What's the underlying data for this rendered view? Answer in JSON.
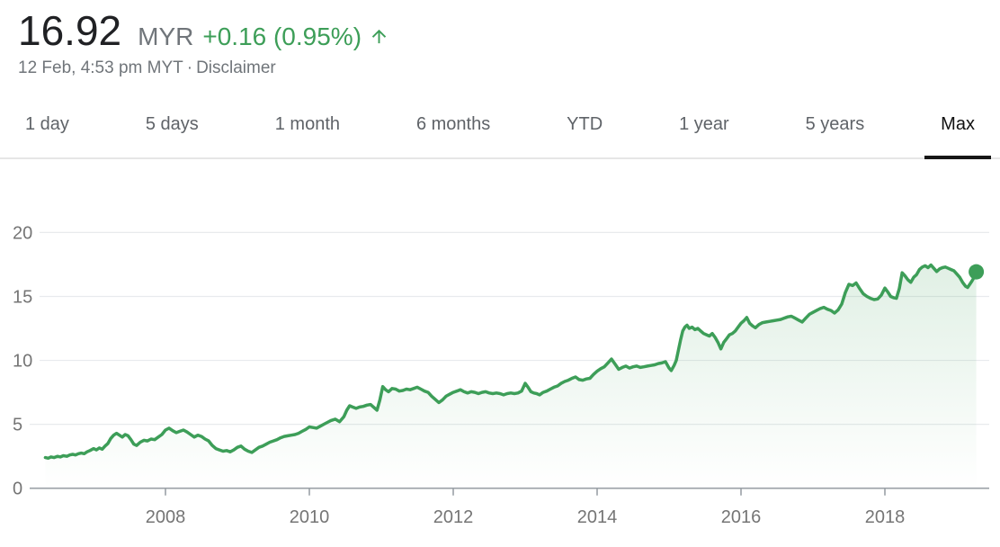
{
  "header": {
    "price": "16.92",
    "currency": "MYR",
    "change": "+0.16 (0.95%)",
    "change_direction": "up",
    "change_color": "#3d9e58",
    "price_color": "#202124",
    "muted_color": "#70757a",
    "date_line": "12 Feb, 4:53 pm MYT",
    "separator": "·",
    "disclaimer_label": "Disclaimer",
    "up_arrow_icon": "arrow-upward"
  },
  "tabs": {
    "items": [
      {
        "label": "1 day",
        "selected": false
      },
      {
        "label": "5 days",
        "selected": false
      },
      {
        "label": "1 month",
        "selected": false
      },
      {
        "label": "6 months",
        "selected": false
      },
      {
        "label": "YTD",
        "selected": false
      },
      {
        "label": "1 year",
        "selected": false
      },
      {
        "label": "5 years",
        "selected": false
      },
      {
        "label": "Max",
        "selected": true
      }
    ]
  },
  "chart_data": {
    "type": "area",
    "title": "",
    "xlabel": "",
    "ylabel": "",
    "x_ticks": [
      2008,
      2010,
      2012,
      2014,
      2016,
      2018
    ],
    "y_ticks": [
      0,
      5,
      10,
      15,
      20
    ],
    "xlim": [
      2006.325,
      2019.45
    ],
    "ylim": [
      0,
      21.8
    ],
    "grid": true,
    "legend": "none",
    "line_color": "#3d9e58",
    "fill_opacity_top": 0.18,
    "fill_opacity_bottom": 0.0,
    "grid_color": "#e8eaed",
    "axis_color": "#9aa0a6",
    "tick_label_color": "#757575",
    "end_dot": true,
    "end_dot_value": 16.92,
    "series": [
      {
        "name": "price",
        "points": [
          [
            2006.33,
            2.4
          ],
          [
            2006.37,
            2.35
          ],
          [
            2006.41,
            2.45
          ],
          [
            2006.45,
            2.4
          ],
          [
            2006.5,
            2.5
          ],
          [
            2006.54,
            2.45
          ],
          [
            2006.58,
            2.55
          ],
          [
            2006.63,
            2.5
          ],
          [
            2006.67,
            2.6
          ],
          [
            2006.71,
            2.65
          ],
          [
            2006.75,
            2.6
          ],
          [
            2006.79,
            2.7
          ],
          [
            2006.83,
            2.75
          ],
          [
            2006.87,
            2.7
          ],
          [
            2006.91,
            2.85
          ],
          [
            2006.95,
            2.95
          ],
          [
            2007,
            3.1
          ],
          [
            2007.04,
            3
          ],
          [
            2007.08,
            3.15
          ],
          [
            2007.12,
            3.05
          ],
          [
            2007.16,
            3.3
          ],
          [
            2007.2,
            3.5
          ],
          [
            2007.24,
            3.9
          ],
          [
            2007.28,
            4.15
          ],
          [
            2007.32,
            4.3
          ],
          [
            2007.36,
            4.15
          ],
          [
            2007.4,
            4
          ],
          [
            2007.44,
            4.2
          ],
          [
            2007.48,
            4.1
          ],
          [
            2007.52,
            3.8
          ],
          [
            2007.56,
            3.45
          ],
          [
            2007.6,
            3.35
          ],
          [
            2007.65,
            3.6
          ],
          [
            2007.7,
            3.75
          ],
          [
            2007.75,
            3.7
          ],
          [
            2007.8,
            3.85
          ],
          [
            2007.85,
            3.8
          ],
          [
            2007.9,
            4
          ],
          [
            2007.95,
            4.2
          ],
          [
            2008,
            4.55
          ],
          [
            2008.05,
            4.7
          ],
          [
            2008.1,
            4.5
          ],
          [
            2008.15,
            4.35
          ],
          [
            2008.2,
            4.45
          ],
          [
            2008.25,
            4.55
          ],
          [
            2008.3,
            4.4
          ],
          [
            2008.35,
            4.2
          ],
          [
            2008.4,
            4
          ],
          [
            2008.45,
            4.15
          ],
          [
            2008.5,
            4.05
          ],
          [
            2008.55,
            3.85
          ],
          [
            2008.6,
            3.7
          ],
          [
            2008.65,
            3.35
          ],
          [
            2008.7,
            3.1
          ],
          [
            2008.75,
            3
          ],
          [
            2008.8,
            2.9
          ],
          [
            2008.85,
            2.95
          ],
          [
            2008.9,
            2.85
          ],
          [
            2008.95,
            3
          ],
          [
            2009,
            3.2
          ],
          [
            2009.05,
            3.3
          ],
          [
            2009.1,
            3.05
          ],
          [
            2009.15,
            2.9
          ],
          [
            2009.2,
            2.8
          ],
          [
            2009.25,
            3
          ],
          [
            2009.3,
            3.2
          ],
          [
            2009.35,
            3.3
          ],
          [
            2009.4,
            3.45
          ],
          [
            2009.45,
            3.6
          ],
          [
            2009.5,
            3.7
          ],
          [
            2009.55,
            3.8
          ],
          [
            2009.6,
            3.95
          ],
          [
            2009.65,
            4.05
          ],
          [
            2009.7,
            4.1
          ],
          [
            2009.75,
            4.15
          ],
          [
            2009.8,
            4.2
          ],
          [
            2009.85,
            4.3
          ],
          [
            2009.9,
            4.45
          ],
          [
            2009.95,
            4.6
          ],
          [
            2010,
            4.8
          ],
          [
            2010.05,
            4.75
          ],
          [
            2010.1,
            4.7
          ],
          [
            2010.15,
            4.85
          ],
          [
            2010.2,
            5
          ],
          [
            2010.25,
            5.15
          ],
          [
            2010.3,
            5.3
          ],
          [
            2010.36,
            5.4
          ],
          [
            2010.42,
            5.2
          ],
          [
            2010.48,
            5.6
          ],
          [
            2010.52,
            6.1
          ],
          [
            2010.56,
            6.45
          ],
          [
            2010.6,
            6.35
          ],
          [
            2010.65,
            6.25
          ],
          [
            2010.7,
            6.35
          ],
          [
            2010.75,
            6.4
          ],
          [
            2010.8,
            6.5
          ],
          [
            2010.85,
            6.55
          ],
          [
            2010.9,
            6.3
          ],
          [
            2010.94,
            6.1
          ],
          [
            2010.98,
            6.9
          ],
          [
            2011.02,
            7.95
          ],
          [
            2011.06,
            7.7
          ],
          [
            2011.1,
            7.55
          ],
          [
            2011.15,
            7.8
          ],
          [
            2011.2,
            7.75
          ],
          [
            2011.25,
            7.6
          ],
          [
            2011.3,
            7.65
          ],
          [
            2011.35,
            7.75
          ],
          [
            2011.4,
            7.7
          ],
          [
            2011.45,
            7.8
          ],
          [
            2011.5,
            7.9
          ],
          [
            2011.55,
            7.75
          ],
          [
            2011.6,
            7.6
          ],
          [
            2011.65,
            7.5
          ],
          [
            2011.7,
            7.2
          ],
          [
            2011.75,
            6.95
          ],
          [
            2011.8,
            6.7
          ],
          [
            2011.85,
            6.9
          ],
          [
            2011.9,
            7.2
          ],
          [
            2011.95,
            7.35
          ],
          [
            2012,
            7.5
          ],
          [
            2012.05,
            7.6
          ],
          [
            2012.1,
            7.7
          ],
          [
            2012.15,
            7.55
          ],
          [
            2012.2,
            7.45
          ],
          [
            2012.25,
            7.55
          ],
          [
            2012.3,
            7.5
          ],
          [
            2012.35,
            7.4
          ],
          [
            2012.4,
            7.5
          ],
          [
            2012.45,
            7.55
          ],
          [
            2012.5,
            7.45
          ],
          [
            2012.55,
            7.4
          ],
          [
            2012.6,
            7.45
          ],
          [
            2012.65,
            7.4
          ],
          [
            2012.7,
            7.3
          ],
          [
            2012.75,
            7.4
          ],
          [
            2012.8,
            7.45
          ],
          [
            2012.85,
            7.4
          ],
          [
            2012.9,
            7.45
          ],
          [
            2012.95,
            7.6
          ],
          [
            2013,
            8.2
          ],
          [
            2013.04,
            7.9
          ],
          [
            2013.08,
            7.55
          ],
          [
            2013.12,
            7.45
          ],
          [
            2013.16,
            7.4
          ],
          [
            2013.2,
            7.3
          ],
          [
            2013.25,
            7.5
          ],
          [
            2013.3,
            7.6
          ],
          [
            2013.35,
            7.75
          ],
          [
            2013.4,
            7.9
          ],
          [
            2013.45,
            8
          ],
          [
            2013.5,
            8.2
          ],
          [
            2013.55,
            8.35
          ],
          [
            2013.6,
            8.45
          ],
          [
            2013.65,
            8.6
          ],
          [
            2013.7,
            8.7
          ],
          [
            2013.75,
            8.5
          ],
          [
            2013.8,
            8.45
          ],
          [
            2013.85,
            8.55
          ],
          [
            2013.9,
            8.6
          ],
          [
            2013.95,
            8.9
          ],
          [
            2014,
            9.15
          ],
          [
            2014.05,
            9.35
          ],
          [
            2014.1,
            9.5
          ],
          [
            2014.15,
            9.8
          ],
          [
            2014.2,
            10.1
          ],
          [
            2014.25,
            9.7
          ],
          [
            2014.3,
            9.3
          ],
          [
            2014.35,
            9.45
          ],
          [
            2014.4,
            9.55
          ],
          [
            2014.45,
            9.4
          ],
          [
            2014.5,
            9.5
          ],
          [
            2014.55,
            9.55
          ],
          [
            2014.6,
            9.45
          ],
          [
            2014.65,
            9.5
          ],
          [
            2014.7,
            9.55
          ],
          [
            2014.75,
            9.6
          ],
          [
            2014.8,
            9.65
          ],
          [
            2014.85,
            9.75
          ],
          [
            2014.9,
            9.8
          ],
          [
            2014.95,
            9.9
          ],
          [
            2015,
            9.4
          ],
          [
            2015.03,
            9.2
          ],
          [
            2015.07,
            9.6
          ],
          [
            2015.1,
            10
          ],
          [
            2015.13,
            10.8
          ],
          [
            2015.16,
            11.6
          ],
          [
            2015.19,
            12.3
          ],
          [
            2015.22,
            12.6
          ],
          [
            2015.25,
            12.75
          ],
          [
            2015.28,
            12.5
          ],
          [
            2015.32,
            12.6
          ],
          [
            2015.36,
            12.4
          ],
          [
            2015.4,
            12.5
          ],
          [
            2015.44,
            12.3
          ],
          [
            2015.48,
            12.1
          ],
          [
            2015.52,
            12
          ],
          [
            2015.56,
            11.9
          ],
          [
            2015.6,
            12.1
          ],
          [
            2015.64,
            11.8
          ],
          [
            2015.68,
            11.4
          ],
          [
            2015.72,
            10.9
          ],
          [
            2015.76,
            11.4
          ],
          [
            2015.8,
            11.7
          ],
          [
            2015.84,
            12
          ],
          [
            2015.88,
            12.1
          ],
          [
            2015.92,
            12.3
          ],
          [
            2015.96,
            12.6
          ],
          [
            2016,
            12.9
          ],
          [
            2016.04,
            13.1
          ],
          [
            2016.08,
            13.35
          ],
          [
            2016.12,
            12.9
          ],
          [
            2016.16,
            12.7
          ],
          [
            2016.2,
            12.55
          ],
          [
            2016.25,
            12.8
          ],
          [
            2016.3,
            12.95
          ],
          [
            2016.35,
            13
          ],
          [
            2016.4,
            13.05
          ],
          [
            2016.45,
            13.1
          ],
          [
            2016.5,
            13.15
          ],
          [
            2016.55,
            13.2
          ],
          [
            2016.6,
            13.3
          ],
          [
            2016.65,
            13.4
          ],
          [
            2016.7,
            13.45
          ],
          [
            2016.75,
            13.3
          ],
          [
            2016.8,
            13.15
          ],
          [
            2016.85,
            13
          ],
          [
            2016.9,
            13.3
          ],
          [
            2016.95,
            13.6
          ],
          [
            2017,
            13.75
          ],
          [
            2017.05,
            13.9
          ],
          [
            2017.1,
            14.05
          ],
          [
            2017.15,
            14.15
          ],
          [
            2017.2,
            14
          ],
          [
            2017.25,
            13.9
          ],
          [
            2017.3,
            13.7
          ],
          [
            2017.35,
            13.95
          ],
          [
            2017.4,
            14.4
          ],
          [
            2017.45,
            15.3
          ],
          [
            2017.5,
            15.95
          ],
          [
            2017.55,
            15.85
          ],
          [
            2017.6,
            16.05
          ],
          [
            2017.65,
            15.6
          ],
          [
            2017.7,
            15.2
          ],
          [
            2017.75,
            15
          ],
          [
            2017.8,
            14.85
          ],
          [
            2017.85,
            14.75
          ],
          [
            2017.9,
            14.8
          ],
          [
            2017.95,
            15.1
          ],
          [
            2018,
            15.65
          ],
          [
            2018.04,
            15.35
          ],
          [
            2018.08,
            15
          ],
          [
            2018.12,
            14.9
          ],
          [
            2018.16,
            14.85
          ],
          [
            2018.2,
            15.6
          ],
          [
            2018.24,
            16.85
          ],
          [
            2018.28,
            16.6
          ],
          [
            2018.32,
            16.3
          ],
          [
            2018.36,
            16.1
          ],
          [
            2018.4,
            16.5
          ],
          [
            2018.44,
            16.7
          ],
          [
            2018.48,
            17.1
          ],
          [
            2018.52,
            17.3
          ],
          [
            2018.56,
            17.4
          ],
          [
            2018.6,
            17.25
          ],
          [
            2018.64,
            17.45
          ],
          [
            2018.68,
            17.2
          ],
          [
            2018.72,
            16.95
          ],
          [
            2018.76,
            17.15
          ],
          [
            2018.8,
            17.25
          ],
          [
            2018.84,
            17.3
          ],
          [
            2018.88,
            17.2
          ],
          [
            2018.92,
            17.1
          ],
          [
            2018.96,
            17
          ],
          [
            2019,
            16.75
          ],
          [
            2019.04,
            16.5
          ],
          [
            2019.08,
            16.1
          ],
          [
            2019.12,
            15.8
          ],
          [
            2019.15,
            15.7
          ],
          [
            2019.18,
            15.95
          ],
          [
            2019.21,
            16.2
          ],
          [
            2019.24,
            16.5
          ],
          [
            2019.27,
            16.92
          ]
        ]
      }
    ]
  }
}
